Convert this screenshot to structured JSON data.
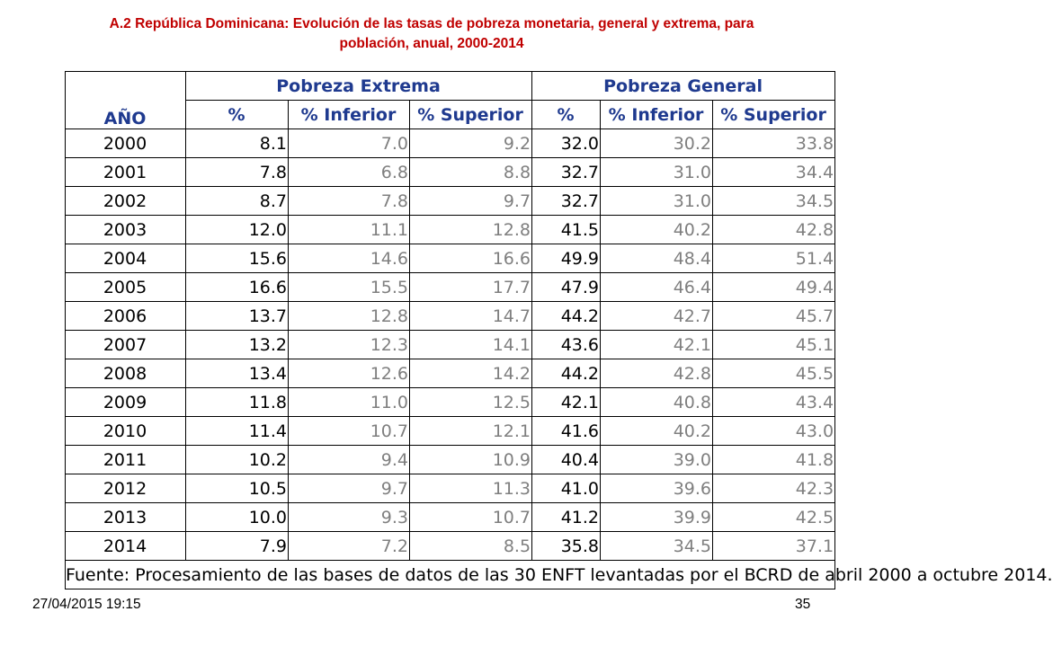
{
  "slide": {
    "title_line1": "A.2 República Dominicana: Evolución de las tasas de pobreza monetaria, general y extrema, para",
    "title_line2": "población, anual, 2000-2014",
    "date": "27/04/2015 19:15",
    "page_number": "35",
    "colors": {
      "title": "#c00000",
      "header": "#1f3a8f",
      "bounds": "#7f7f7f"
    }
  },
  "table": {
    "year_header": "AÑO",
    "group_headers": [
      "Pobreza Extrema",
      "Pobreza General"
    ],
    "sub_headers": [
      "%",
      "% Inferior",
      "% Superior",
      "%",
      "% Inferior",
      "% Superior"
    ],
    "rows": [
      {
        "year": "2000",
        "values": [
          "8.1",
          "7.0",
          "9.2",
          "32.0",
          "30.2",
          "33.8"
        ]
      },
      {
        "year": "2001",
        "values": [
          "7.8",
          "6.8",
          "8.8",
          "32.7",
          "31.0",
          "34.4"
        ]
      },
      {
        "year": "2002",
        "values": [
          "8.7",
          "7.8",
          "9.7",
          "32.7",
          "31.0",
          "34.5"
        ]
      },
      {
        "year": "2003",
        "values": [
          "12.0",
          "11.1",
          "12.8",
          "41.5",
          "40.2",
          "42.8"
        ]
      },
      {
        "year": "2004",
        "values": [
          "15.6",
          "14.6",
          "16.6",
          "49.9",
          "48.4",
          "51.4"
        ]
      },
      {
        "year": "2005",
        "values": [
          "16.6",
          "15.5",
          "17.7",
          "47.9",
          "46.4",
          "49.4"
        ]
      },
      {
        "year": "2006",
        "values": [
          "13.7",
          "12.8",
          "14.7",
          "44.2",
          "42.7",
          "45.7"
        ]
      },
      {
        "year": "2007",
        "values": [
          "13.2",
          "12.3",
          "14.1",
          "43.6",
          "42.1",
          "45.1"
        ]
      },
      {
        "year": "2008",
        "values": [
          "13.4",
          "12.6",
          "14.2",
          "44.2",
          "42.8",
          "45.5"
        ]
      },
      {
        "year": "2009",
        "values": [
          "11.8",
          "11.0",
          "12.5",
          "42.1",
          "40.8",
          "43.4"
        ]
      },
      {
        "year": "2010",
        "values": [
          "11.4",
          "10.7",
          "12.1",
          "41.6",
          "40.2",
          "43.0"
        ]
      },
      {
        "year": "2011",
        "values": [
          "10.2",
          "9.4",
          "10.9",
          "40.4",
          "39.0",
          "41.8"
        ]
      },
      {
        "year": "2012",
        "values": [
          "10.5",
          "9.7",
          "11.3",
          "41.0",
          "39.6",
          "42.3"
        ]
      },
      {
        "year": "2013",
        "values": [
          "10.0",
          "9.3",
          "10.7",
          "41.2",
          "39.9",
          "42.5"
        ]
      },
      {
        "year": "2014",
        "values": [
          "7.9",
          "7.2",
          "8.5",
          "35.8",
          "34.5",
          "37.1"
        ]
      }
    ],
    "source": "Fuente: Procesamiento de las bases de datos de las 30 ENFT levantadas por el BCRD de  abril 2000 a octubre 2014."
  }
}
